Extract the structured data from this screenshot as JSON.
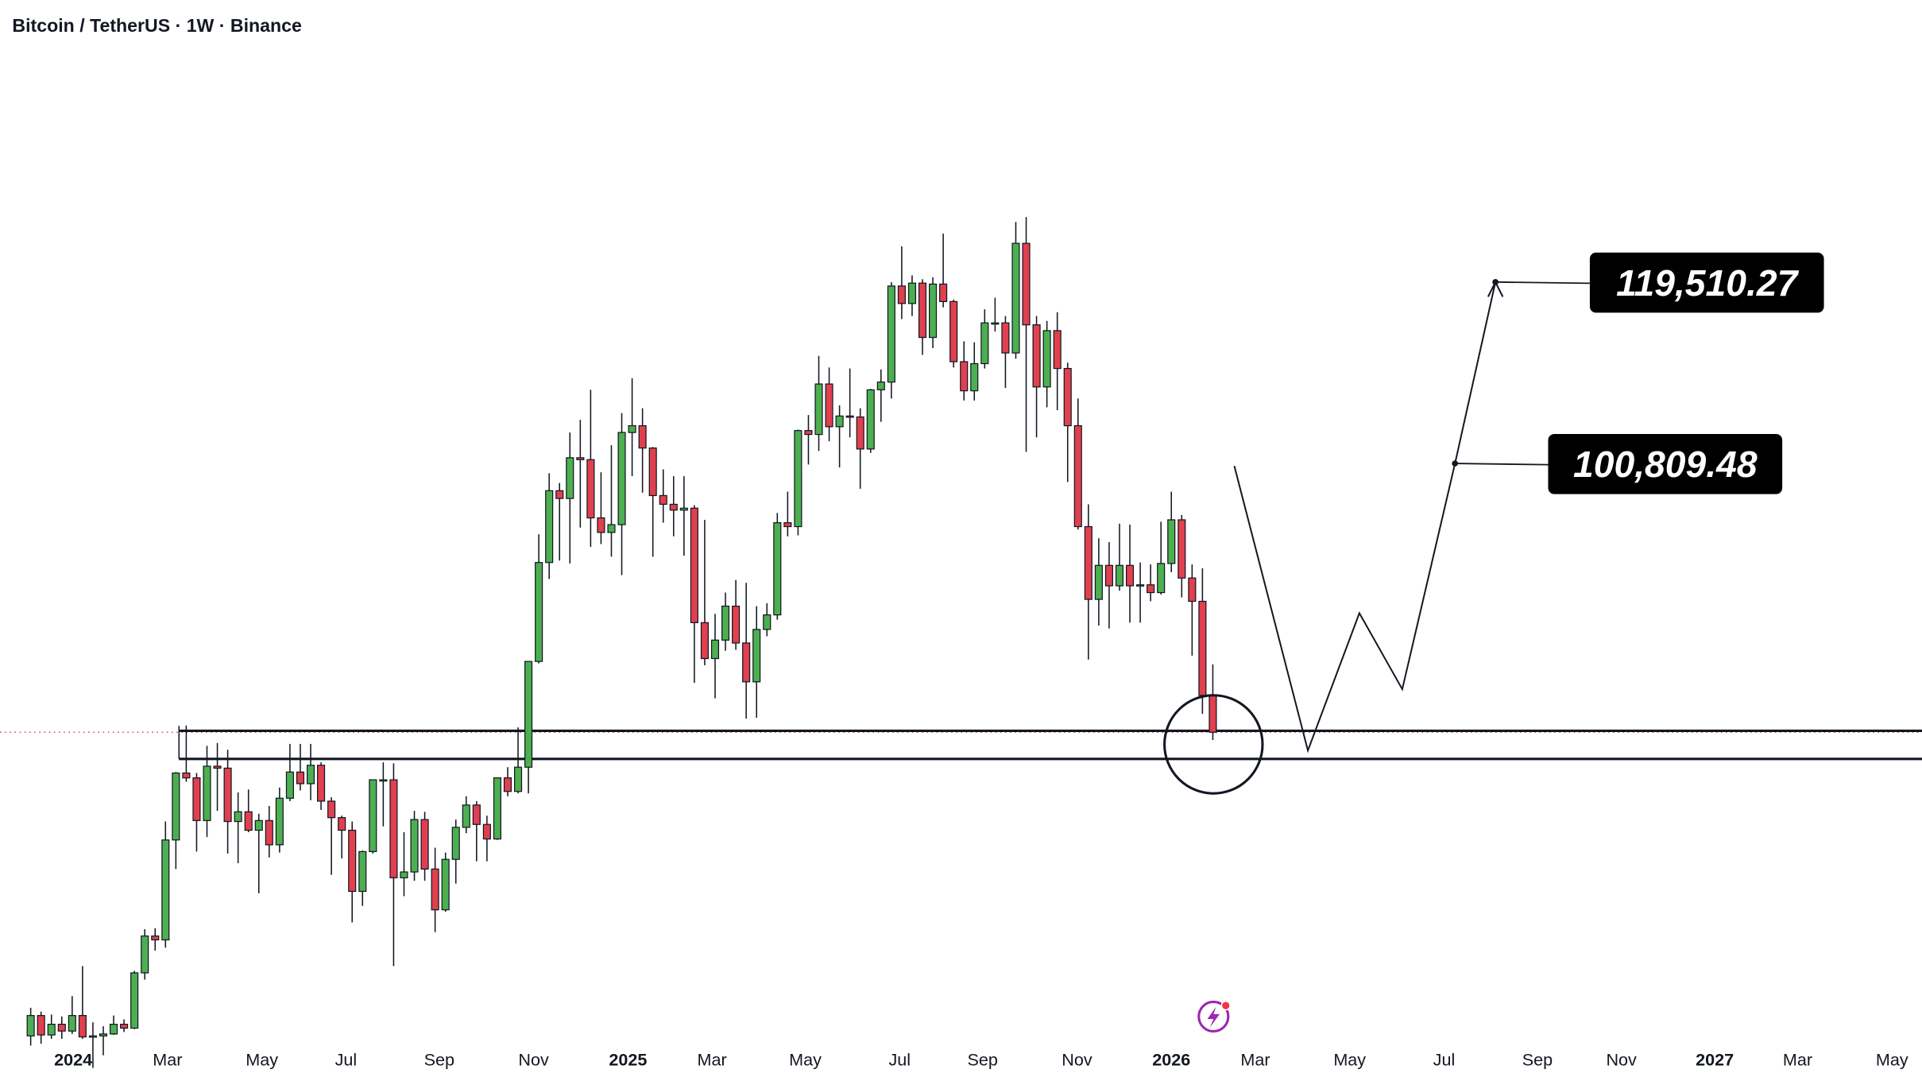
{
  "chart_data": {
    "type": "candlestick",
    "title": "Bitcoin / TetherUS · 1W · Binance",
    "xlim": [
      -2.96,
      182.39
    ],
    "ylim": [
      41390,
      148580
    ],
    "xticks": [
      {
        "value": 4.1,
        "label": "2024"
      },
      {
        "value": 13.2,
        "label": "Mar"
      },
      {
        "value": 22.3,
        "label": "May"
      },
      {
        "value": 30.4,
        "label": "Jul"
      },
      {
        "value": 39.4,
        "label": "Sep"
      },
      {
        "value": 48.5,
        "label": "Nov"
      },
      {
        "value": 57.6,
        "label": "2025"
      },
      {
        "value": 65.7,
        "label": "Mar"
      },
      {
        "value": 74.7,
        "label": "May"
      },
      {
        "value": 83.8,
        "label": "Jul"
      },
      {
        "value": 91.8,
        "label": "Sep"
      },
      {
        "value": 100.9,
        "label": "Nov"
      },
      {
        "value": 110,
        "label": "2026"
      },
      {
        "value": 118.1,
        "label": "Mar"
      },
      {
        "value": 127.2,
        "label": "May"
      },
      {
        "value": 136.3,
        "label": "Jul"
      },
      {
        "value": 145.3,
        "label": "Sep"
      },
      {
        "value": 153.4,
        "label": "Nov"
      },
      {
        "value": 162.4,
        "label": "2027"
      },
      {
        "value": 170.4,
        "label": "Mar"
      },
      {
        "value": 179.5,
        "label": "May"
      }
    ],
    "up_color": "#4caf50",
    "down_color": "#e0404f",
    "levels": [
      73250,
      70350
    ],
    "targets": [
      {
        "value": 119510.27,
        "label": "119,510.27"
      },
      {
        "value": 100809.48,
        "label": "100,809.48"
      }
    ],
    "candles": [
      [
        41800,
        44700,
        40800,
        43900
      ],
      [
        43900,
        44300,
        41000,
        41900
      ],
      [
        41900,
        44000,
        41500,
        43000
      ],
      [
        43000,
        43800,
        41500,
        42300
      ],
      [
        42300,
        45900,
        42000,
        43900
      ],
      [
        43900,
        49000,
        41500,
        41700
      ],
      [
        41700,
        43200,
        38500,
        41800
      ],
      [
        41800,
        42800,
        39800,
        42000
      ],
      [
        42000,
        43900,
        41900,
        43000
      ],
      [
        43000,
        43500,
        42200,
        42600
      ],
      [
        42600,
        48500,
        42500,
        48300
      ],
      [
        48300,
        52800,
        47600,
        52100
      ],
      [
        52100,
        52900,
        50600,
        51700
      ],
      [
        51700,
        63900,
        50900,
        62000
      ],
      [
        62000,
        69000,
        59000,
        68900
      ],
      [
        68900,
        73800,
        68000,
        68400
      ],
      [
        68400,
        68900,
        60800,
        64000
      ],
      [
        64000,
        71700,
        62300,
        69600
      ],
      [
        69600,
        72000,
        65000,
        69400
      ],
      [
        69400,
        71300,
        60600,
        63900
      ],
      [
        63900,
        66900,
        59600,
        64900
      ],
      [
        64900,
        67200,
        62800,
        63000
      ],
      [
        63000,
        64700,
        56500,
        64000
      ],
      [
        64000,
        65500,
        60200,
        61500
      ],
      [
        61500,
        67400,
        60700,
        66300
      ],
      [
        66300,
        71900,
        66000,
        69000
      ],
      [
        69000,
        71900,
        67100,
        67800
      ],
      [
        67800,
        71900,
        66100,
        69700
      ],
      [
        69700,
        70000,
        65100,
        66000
      ],
      [
        66000,
        66400,
        58400,
        64300
      ],
      [
        64300,
        64500,
        60100,
        63000
      ],
      [
        63000,
        63900,
        53500,
        56700
      ],
      [
        56700,
        60900,
        55200,
        60800
      ],
      [
        60800,
        68000,
        60600,
        68200
      ],
      [
        68200,
        70000,
        63400,
        68200
      ],
      [
        68200,
        69900,
        49000,
        58100
      ],
      [
        58100,
        62800,
        56200,
        58700
      ],
      [
        58700,
        65000,
        57800,
        64100
      ],
      [
        64100,
        64900,
        57800,
        59000
      ],
      [
        59000,
        61200,
        52500,
        54800
      ],
      [
        54800,
        60700,
        54600,
        60000
      ],
      [
        60000,
        64100,
        57500,
        63300
      ],
      [
        63300,
        66500,
        62700,
        65600
      ],
      [
        65600,
        66000,
        59800,
        63600
      ],
      [
        63600,
        64500,
        59800,
        62100
      ],
      [
        62100,
        68400,
        62000,
        68400
      ],
      [
        68400,
        69500,
        66500,
        67000
      ],
      [
        67000,
        73600,
        66800,
        69500
      ],
      [
        69500,
        80300,
        66800,
        80400
      ],
      [
        80400,
        93500,
        80200,
        90600
      ],
      [
        90600,
        99800,
        88900,
        98000
      ],
      [
        98000,
        98800,
        90800,
        97200
      ],
      [
        97200,
        104000,
        90500,
        101400
      ],
      [
        101400,
        105300,
        94200,
        101200
      ],
      [
        101200,
        108400,
        92200,
        95200
      ],
      [
        95200,
        99900,
        92500,
        93700
      ],
      [
        93700,
        102700,
        91200,
        94500
      ],
      [
        94500,
        106000,
        89300,
        104000
      ],
      [
        104000,
        109600,
        99500,
        104700
      ],
      [
        104700,
        106500,
        97800,
        102400
      ],
      [
        102400,
        102500,
        91200,
        97500
      ],
      [
        97500,
        100200,
        94700,
        96600
      ],
      [
        96600,
        99500,
        93300,
        96000
      ],
      [
        96000,
        99500,
        91300,
        96200
      ],
      [
        96200,
        96500,
        78200,
        84400
      ],
      [
        84400,
        95000,
        80000,
        80700
      ],
      [
        80700,
        85300,
        76600,
        82600
      ],
      [
        82600,
        87500,
        81500,
        86100
      ],
      [
        86100,
        88800,
        81600,
        82300
      ],
      [
        82300,
        88500,
        74500,
        78300
      ],
      [
        78300,
        86100,
        74600,
        83700
      ],
      [
        83700,
        86400,
        83000,
        85200
      ],
      [
        85200,
        95700,
        84700,
        94700
      ],
      [
        94700,
        97900,
        93300,
        94300
      ],
      [
        94300,
        104300,
        93400,
        104200
      ],
      [
        104200,
        105800,
        100700,
        103800
      ],
      [
        103800,
        111900,
        102100,
        109000
      ],
      [
        109000,
        110700,
        103100,
        104600
      ],
      [
        104600,
        106800,
        100400,
        105700
      ],
      [
        105700,
        110600,
        103500,
        105600
      ],
      [
        105600,
        106500,
        98200,
        102300
      ],
      [
        102300,
        108500,
        101900,
        108400
      ],
      [
        108400,
        110500,
        105100,
        109200
      ],
      [
        109200,
        119500,
        107500,
        119100
      ],
      [
        119100,
        123200,
        115700,
        117300
      ],
      [
        117300,
        120200,
        116000,
        119400
      ],
      [
        119400,
        119800,
        112000,
        113800
      ],
      [
        113800,
        120000,
        112700,
        119300
      ],
      [
        119300,
        124500,
        116900,
        117500
      ],
      [
        117500,
        117700,
        110700,
        111300
      ],
      [
        111300,
        113400,
        107300,
        108300
      ],
      [
        108300,
        113300,
        107300,
        111100
      ],
      [
        111100,
        116700,
        110600,
        115300
      ],
      [
        115300,
        117900,
        114400,
        115300
      ],
      [
        115300,
        116000,
        108600,
        112200
      ],
      [
        112200,
        125700,
        111600,
        123500
      ],
      [
        123500,
        126200,
        102000,
        115100
      ],
      [
        115100,
        116000,
        103500,
        108700
      ],
      [
        108700,
        115500,
        106600,
        114500
      ],
      [
        114500,
        116400,
        106300,
        110600
      ],
      [
        110600,
        111200,
        98900,
        104700
      ],
      [
        104700,
        107500,
        94000,
        94300
      ],
      [
        94300,
        96600,
        80600,
        86800
      ],
      [
        86800,
        93100,
        84100,
        90300
      ],
      [
        90300,
        92700,
        83800,
        88200
      ],
      [
        88200,
        94600,
        87700,
        90300
      ],
      [
        90300,
        94500,
        84400,
        88200
      ],
      [
        88200,
        90600,
        84400,
        88300
      ],
      [
        88300,
        90400,
        86600,
        87500
      ],
      [
        87500,
        94800,
        87300,
        90500
      ],
      [
        90500,
        97900,
        89600,
        95000
      ],
      [
        95000,
        95500,
        87000,
        89000
      ],
      [
        89000,
        90400,
        81000,
        86600
      ],
      [
        86600,
        90000,
        75000,
        76900
      ],
      [
        76900,
        80100,
        72300,
        73100
      ]
    ]
  }
}
